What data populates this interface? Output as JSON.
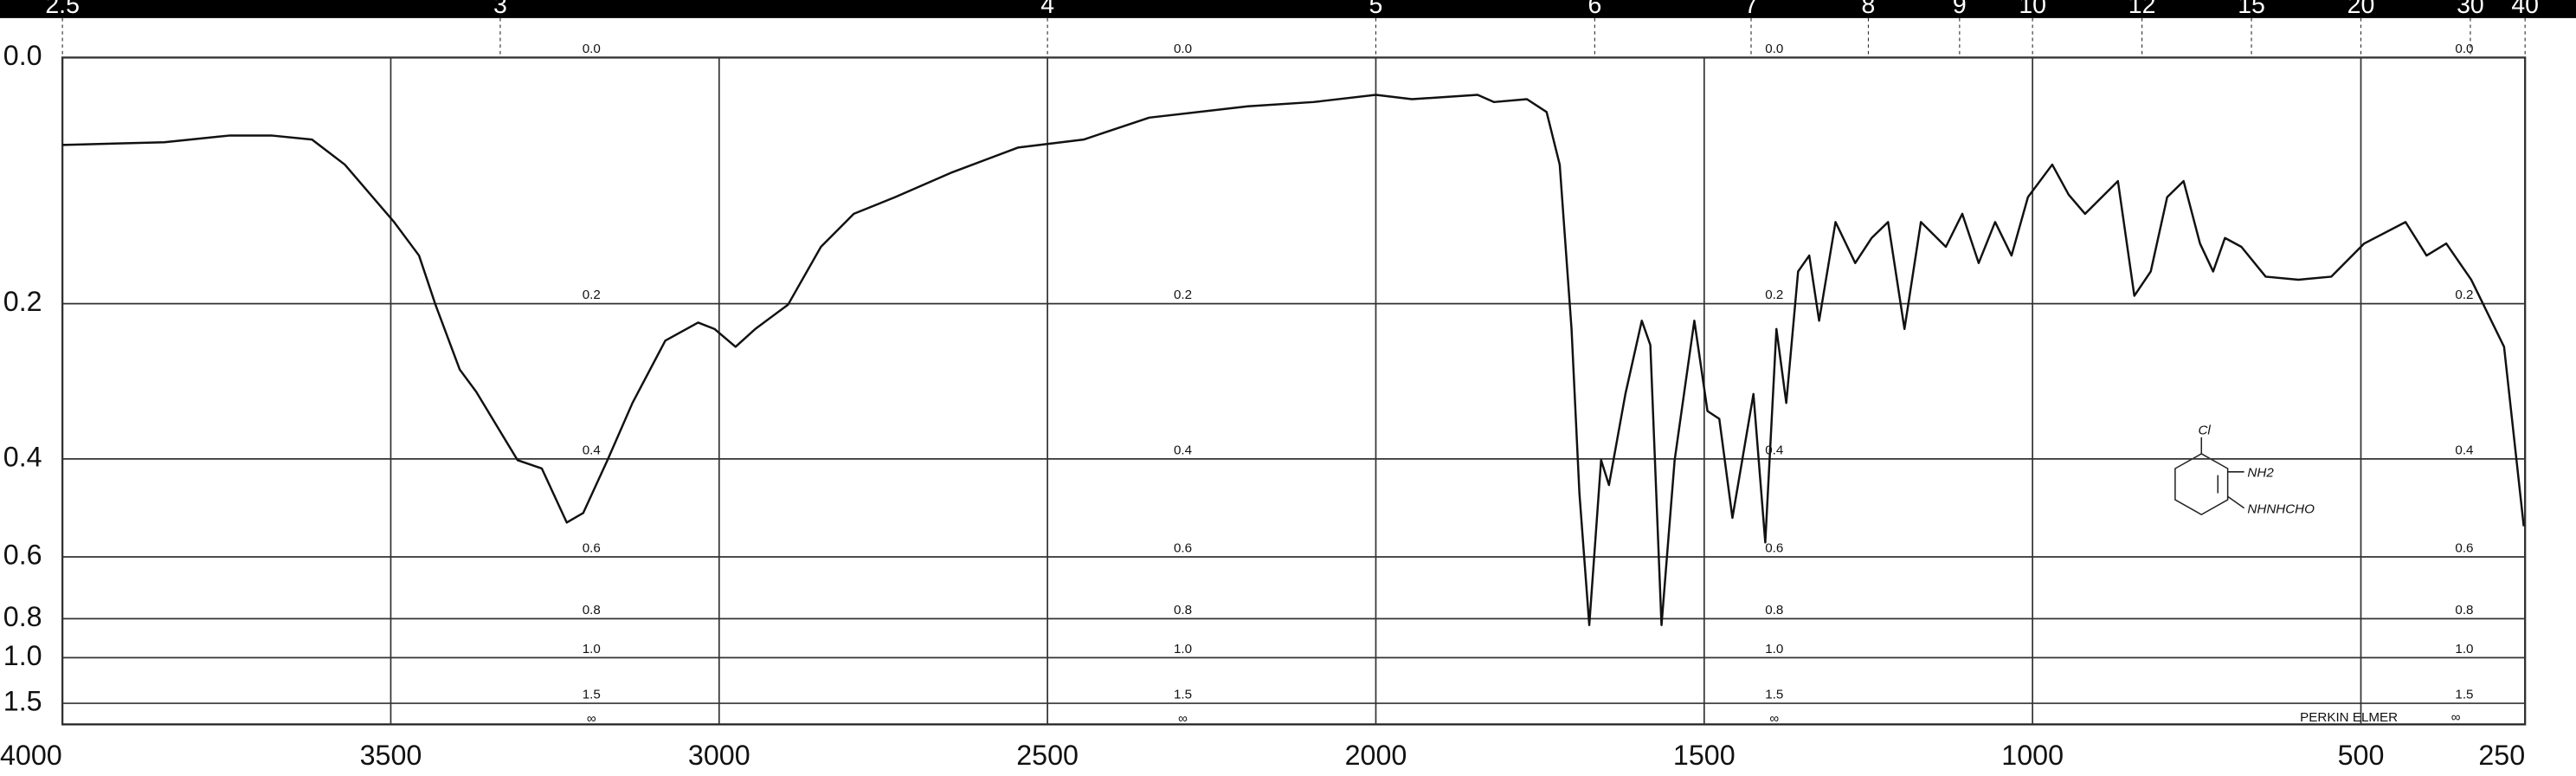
{
  "chart_data": {
    "type": "line",
    "x": [
      4000,
      3845,
      3745,
      3682,
      3620,
      3570,
      3495,
      3457,
      3432,
      3395,
      3370,
      3345,
      3307,
      3270,
      3232,
      3207,
      3170,
      3132,
      3082,
      3032,
      3007,
      2975,
      2945,
      2895,
      2845,
      2795,
      2732,
      2645,
      2545,
      2445,
      2345,
      2195,
      2095,
      2000,
      1945,
      1845,
      1820,
      1770,
      1740,
      1720,
      1702,
      1690,
      1675,
      1657,
      1645,
      1620,
      1595,
      1582,
      1565,
      1545,
      1515,
      1495,
      1477,
      1457,
      1425,
      1407,
      1390,
      1375,
      1357,
      1340,
      1325,
      1300,
      1270,
      1245,
      1220,
      1195,
      1170,
      1132,
      1107,
      1082,
      1057,
      1032,
      1007,
      970,
      945,
      920,
      870,
      845,
      820,
      795,
      770,
      745,
      725,
      707,
      682,
      645,
      595,
      545,
      495,
      432,
      400,
      370,
      332,
      282,
      252
    ],
    "series": [
      {
        "color": "#111111",
        "values": [
          0.061,
          0.059,
          0.054,
          0.054,
          0.057,
          0.076,
          0.123,
          0.153,
          0.201,
          0.274,
          0.302,
          0.339,
          0.402,
          0.416,
          0.519,
          0.499,
          0.402,
          0.317,
          0.24,
          0.22,
          0.227,
          0.247,
          0.227,
          0.201,
          0.145,
          0.116,
          0.102,
          0.082,
          0.063,
          0.057,
          0.041,
          0.033,
          0.03,
          0.025,
          0.028,
          0.025,
          0.03,
          0.028,
          0.037,
          0.076,
          0.227,
          0.46,
          0.827,
          0.402,
          0.445,
          0.305,
          0.218,
          0.245,
          0.827,
          0.402,
          0.218,
          0.328,
          0.339,
          0.509,
          0.305,
          0.564,
          0.227,
          0.317,
          0.168,
          0.153,
          0.218,
          0.123,
          0.16,
          0.137,
          0.123,
          0.227,
          0.123,
          0.145,
          0.116,
          0.16,
          0.123,
          0.153,
          0.102,
          0.076,
          0.1,
          0.116,
          0.089,
          0.192,
          0.168,
          0.102,
          0.089,
          0.142,
          0.168,
          0.137,
          0.145,
          0.173,
          0.176,
          0.173,
          0.142,
          0.123,
          0.153,
          0.142,
          0.176,
          0.247,
          0.527
        ]
      }
    ],
    "xlim": [
      4000,
      250
    ],
    "xticks": [
      4000,
      3500,
      3000,
      2500,
      2000,
      1500,
      1000,
      500,
      250
    ],
    "ylim": [
      0,
      1.5
    ],
    "yscale": "absorbance",
    "yticks": [
      {
        "value": 0,
        "label": "0.0"
      },
      0.2,
      0.4,
      0.6,
      0.8,
      {
        "value": 1,
        "label": "1.0"
      },
      1.5
    ],
    "x2ticks": [
      2.5,
      3,
      4,
      5,
      6,
      7,
      8,
      9,
      10,
      12,
      15,
      20,
      30,
      40
    ],
    "grid": true,
    "annotations": [
      "PERKIN ELMER",
      "∞"
    ],
    "structure_labels": [
      "Cl",
      "NH2",
      "NHNHCHO"
    ]
  }
}
